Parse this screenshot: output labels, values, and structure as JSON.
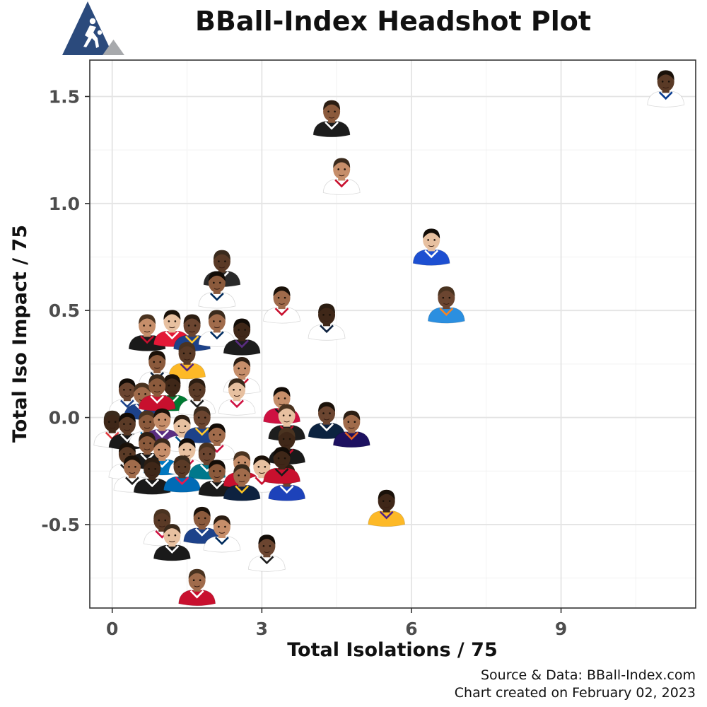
{
  "chart_data": {
    "type": "scatter",
    "title": "BBall-Index Headshot Plot",
    "xlabel": "Total Isolations / 75",
    "ylabel": "Total Iso Impact / 75",
    "xlim": [
      -0.45,
      11.7
    ],
    "ylim": [
      -0.89,
      1.67
    ],
    "x_ticks": [
      0,
      3,
      6,
      9
    ],
    "x_tick_labels": [
      "0",
      "3",
      "6",
      "9"
    ],
    "y_ticks": [
      -0.5,
      0.0,
      0.5,
      1.0,
      1.5
    ],
    "y_tick_labels": [
      "-0.5",
      "0.0",
      "0.5",
      "1.0",
      "1.5"
    ],
    "grid": true,
    "marker": "player-headshot",
    "points": [
      {
        "x": 11.1,
        "y": 1.54,
        "jersey": "#ffffff",
        "trim": "#0a3d91"
      },
      {
        "x": 4.4,
        "y": 1.4,
        "jersey": "#1c1c1c",
        "trim": "#ffffff"
      },
      {
        "x": 4.6,
        "y": 1.13,
        "jersey": "#ffffff",
        "trim": "#c8102e"
      },
      {
        "x": 6.4,
        "y": 0.8,
        "jersey": "#1d4fd1",
        "trim": "#ffffff"
      },
      {
        "x": 6.7,
        "y": 0.53,
        "jersey": "#2b8fe0",
        "trim": "#f58426"
      },
      {
        "x": 3.4,
        "y": 0.53,
        "jersey": "#ffffff",
        "trim": "#c8102e"
      },
      {
        "x": 4.3,
        "y": 0.45,
        "jersey": "#ffffff",
        "trim": "#0e2240"
      },
      {
        "x": 2.2,
        "y": 0.7,
        "jersey": "#2a2a2a",
        "trim": "#ffffff"
      },
      {
        "x": 2.1,
        "y": 0.6,
        "jersey": "#ffffff",
        "trim": "#002b5c"
      },
      {
        "x": 0.7,
        "y": 0.4,
        "jersey": "#1a1a1a",
        "trim": "#c8102e"
      },
      {
        "x": 1.2,
        "y": 0.42,
        "jersey": "#e31837",
        "trim": "#ffffff"
      },
      {
        "x": 1.6,
        "y": 0.4,
        "jersey": "#1d428a",
        "trim": "#ffc72c"
      },
      {
        "x": 2.1,
        "y": 0.42,
        "jersey": "#ffffff",
        "trim": "#002d62"
      },
      {
        "x": 2.6,
        "y": 0.38,
        "jersey": "#1d1d1d",
        "trim": "#5a2d81"
      },
      {
        "x": 1.5,
        "y": 0.27,
        "jersey": "#fdb927",
        "trim": "#552583"
      },
      {
        "x": 0.9,
        "y": 0.23,
        "jersey": "#ffffff",
        "trim": "#0c2340"
      },
      {
        "x": 2.6,
        "y": 0.2,
        "jersey": "#ffffff",
        "trim": "#c8102e"
      },
      {
        "x": 2.5,
        "y": 0.1,
        "jersey": "#ffffff",
        "trim": "#ce1141"
      },
      {
        "x": 0.3,
        "y": 0.1,
        "jersey": "#ffffff",
        "trim": "#1d428a"
      },
      {
        "x": 0.6,
        "y": 0.08,
        "jersey": "#1d428a",
        "trim": "#ffffff"
      },
      {
        "x": 1.2,
        "y": 0.12,
        "jersey": "#007a33",
        "trim": "#ffffff"
      },
      {
        "x": 1.7,
        "y": 0.1,
        "jersey": "#ffffff",
        "trim": "#1d1d1d"
      },
      {
        "x": 0.9,
        "y": 0.12,
        "jersey": "#c8102e",
        "trim": "#ffffff"
      },
      {
        "x": 3.4,
        "y": 0.06,
        "jersey": "#ce1141",
        "trim": "#1d1d1d"
      },
      {
        "x": 3.5,
        "y": -0.02,
        "jersey": "#1d1d1d",
        "trim": "#c8102e"
      },
      {
        "x": 4.3,
        "y": -0.01,
        "jersey": "#0c2340",
        "trim": "#ffffff"
      },
      {
        "x": 4.8,
        "y": -0.05,
        "jersey": "#1d1160",
        "trim": "#e56020"
      },
      {
        "x": 0.0,
        "y": -0.05,
        "jersey": "#ffffff",
        "trim": "#e03a3e"
      },
      {
        "x": 0.3,
        "y": -0.06,
        "jersey": "#1a1a1a",
        "trim": "#ffffff"
      },
      {
        "x": 0.7,
        "y": -0.05,
        "jersey": "#ffffff",
        "trim": "#007ac1"
      },
      {
        "x": 1.0,
        "y": -0.04,
        "jersey": "#5a2d81",
        "trim": "#ffffff"
      },
      {
        "x": 1.4,
        "y": -0.07,
        "jersey": "#ffffff",
        "trim": "#00538c"
      },
      {
        "x": 1.8,
        "y": -0.03,
        "jersey": "#1d428a",
        "trim": "#ffc72c"
      },
      {
        "x": 2.1,
        "y": -0.11,
        "jersey": "#ffffff",
        "trim": "#ce1141"
      },
      {
        "x": 3.5,
        "y": -0.13,
        "jersey": "#1a1a1a",
        "trim": "#c8102e"
      },
      {
        "x": 0.3,
        "y": -0.2,
        "jersey": "#ffffff",
        "trim": "#1d1d1d"
      },
      {
        "x": 0.7,
        "y": -0.15,
        "jersey": "#1a1a1a",
        "trim": "#ffffff"
      },
      {
        "x": 1.0,
        "y": -0.18,
        "jersey": "#0077c0",
        "trim": "#ffffff"
      },
      {
        "x": 1.5,
        "y": -0.18,
        "jersey": "#ffffff",
        "trim": "#ce1141"
      },
      {
        "x": 1.9,
        "y": -0.2,
        "jersey": "#00788c",
        "trim": "#ffffff"
      },
      {
        "x": 0.4,
        "y": -0.26,
        "jersey": "#ffffff",
        "trim": "#1a1a1a"
      },
      {
        "x": 0.8,
        "y": -0.27,
        "jersey": "#1a1a1a",
        "trim": "#ffffff"
      },
      {
        "x": 1.4,
        "y": -0.26,
        "jersey": "#006bb6",
        "trim": "#ed174c"
      },
      {
        "x": 2.1,
        "y": -0.28,
        "jersey": "#1a1a1a",
        "trim": "#ffffff"
      },
      {
        "x": 2.6,
        "y": -0.24,
        "jersey": "#c8102e",
        "trim": "#ffffff"
      },
      {
        "x": 3.0,
        "y": -0.26,
        "jersey": "#ffffff",
        "trim": "#c8102e"
      },
      {
        "x": 3.5,
        "y": -0.3,
        "jersey": "#1d42ba",
        "trim": "#ffffff"
      },
      {
        "x": 2.6,
        "y": -0.3,
        "jersey": "#0e2240",
        "trim": "#fec524"
      },
      {
        "x": 3.4,
        "y": -0.22,
        "jersey": "#c8102e",
        "trim": "#1a1a1a"
      },
      {
        "x": 1.0,
        "y": -0.51,
        "jersey": "#ffffff",
        "trim": "#ce1141"
      },
      {
        "x": 1.8,
        "y": -0.5,
        "jersey": "#1d428a",
        "trim": "#ffffff"
      },
      {
        "x": 2.2,
        "y": -0.54,
        "jersey": "#ffffff",
        "trim": "#002b5c"
      },
      {
        "x": 1.2,
        "y": -0.58,
        "jersey": "#1a1a1a",
        "trim": "#ffffff"
      },
      {
        "x": 3.1,
        "y": -0.63,
        "jersey": "#ffffff",
        "trim": "#1d1d1d"
      },
      {
        "x": 1.7,
        "y": -0.79,
        "jersey": "#c8102e",
        "trim": "#ffffff"
      },
      {
        "x": 5.5,
        "y": -0.42,
        "jersey": "#fdb927",
        "trim": "#552583"
      }
    ]
  },
  "caption": {
    "line1": "Source & Data: BBall-Index.com",
    "line2": "Chart created on February 02, 2023"
  },
  "colors": {
    "logo_navy": "#2b4a7c",
    "logo_gray": "#a7a9ac",
    "panel_border": "#333333",
    "gridline": "#e4e4e4"
  }
}
